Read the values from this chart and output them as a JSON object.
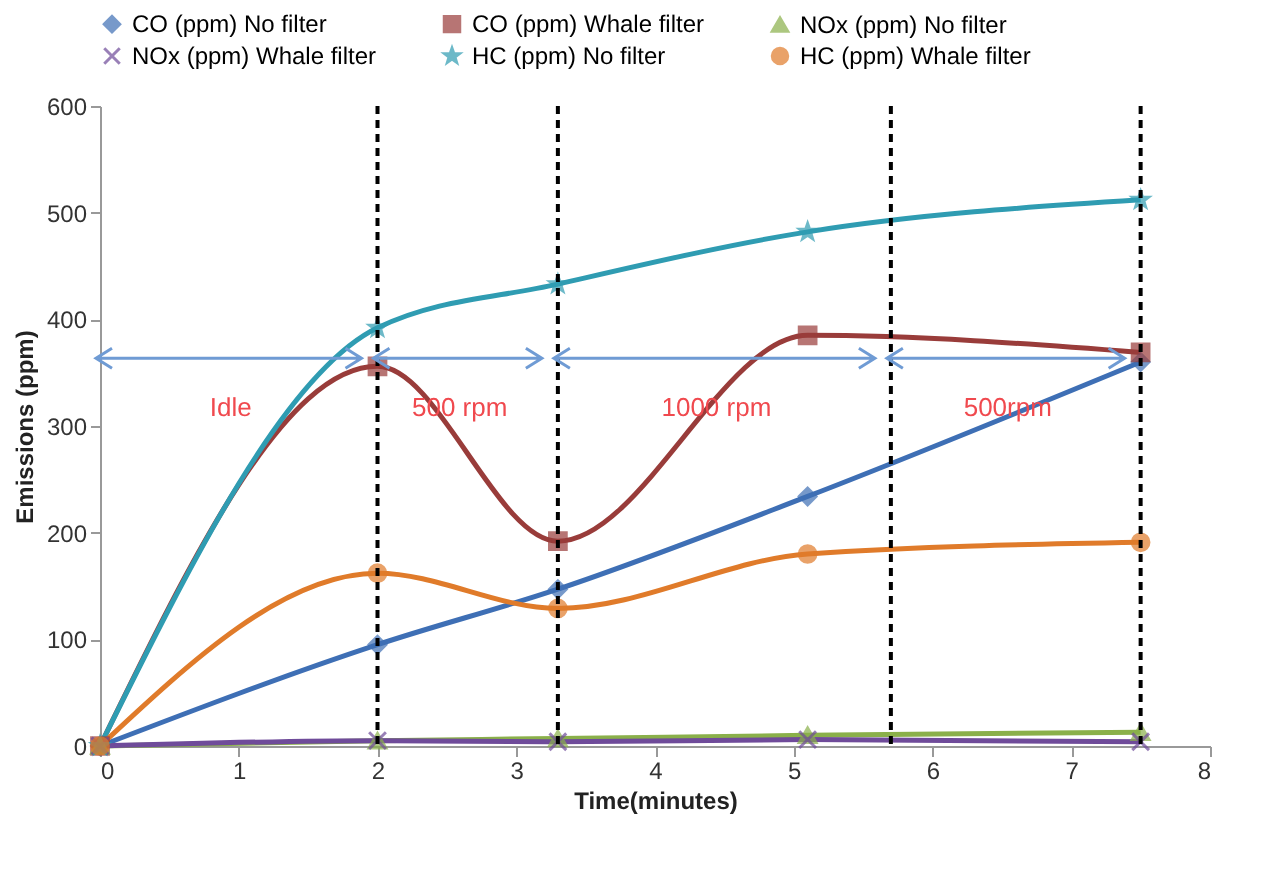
{
  "chart_data": {
    "type": "line",
    "xlabel": "Time(minutes)",
    "ylabel": "Emissions (ppm)",
    "x": [
      0,
      2,
      3.3,
      5.1,
      7.5
    ],
    "series": [
      {
        "name": "CO (ppm) No filter",
        "color": "#3e6fb5",
        "marker": "diamond",
        "values": [
          0,
          95,
          147,
          234,
          360
        ]
      },
      {
        "name": "CO (ppm) Whale filter",
        "color": "#993c3a",
        "marker": "square",
        "values": [
          0,
          356,
          192,
          385,
          369
        ]
      },
      {
        "name": "NOx (ppm) No filter",
        "color": "#8ab04a",
        "marker": "triangle",
        "values": [
          0,
          5,
          7,
          10,
          13
        ]
      },
      {
        "name": "NOx (ppm) Whale filter",
        "color": "#6f4b9a",
        "marker": "cross",
        "values": [
          0,
          5,
          4,
          6,
          4
        ]
      },
      {
        "name": "HC (ppm) No filter",
        "color": "#2f9cb2",
        "marker": "star",
        "values": [
          0,
          392,
          433,
          482,
          512
        ]
      },
      {
        "name": "HC (ppm) Whale filter",
        "color": "#e07b2a",
        "marker": "circle",
        "values": [
          0,
          162,
          129,
          180,
          191
        ]
      }
    ],
    "xlim": [
      0,
      8
    ],
    "xticks": [
      0,
      1,
      2,
      3,
      4,
      5,
      6,
      7,
      8
    ],
    "ylim": [
      0,
      600
    ],
    "yticks": [
      0,
      100,
      200,
      300,
      400,
      500,
      600
    ],
    "grid": false,
    "legend": "top",
    "ref_lines": [
      {
        "axis": "x",
        "value": 2,
        "color": "#000000",
        "line_style": "dashed"
      },
      {
        "axis": "x",
        "value": 3.3,
        "color": "#000000",
        "line_style": "dashed"
      },
      {
        "axis": "x",
        "value": 5.7,
        "color": "#000000",
        "line_style": "dashed"
      },
      {
        "axis": "x",
        "value": 7.5,
        "color": "#000000",
        "line_style": "dashed"
      }
    ],
    "annotations": [
      "Idle",
      "500 rpm",
      "1000 rpm",
      "500rpm"
    ]
  }
}
